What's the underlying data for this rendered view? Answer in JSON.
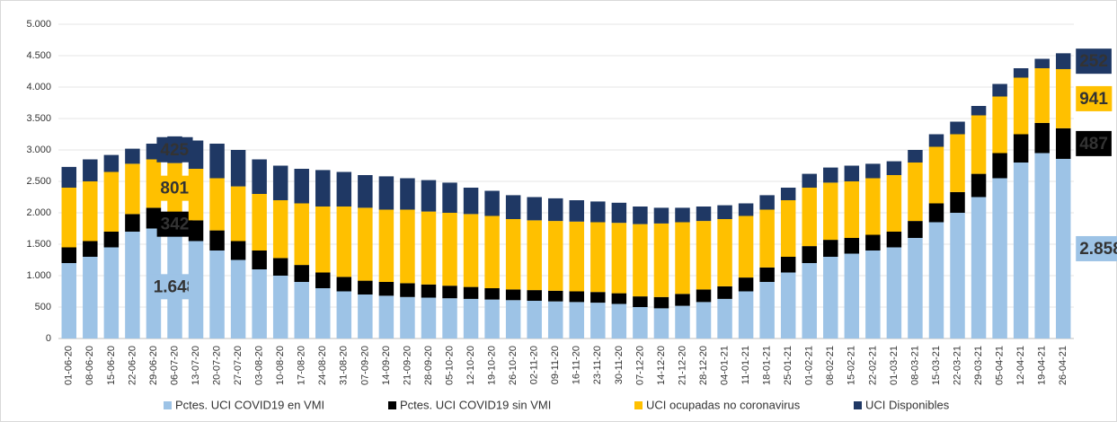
{
  "chart_data": {
    "type": "stacked_bar",
    "categories": [
      "01-06-20",
      "08-06-20",
      "15-06-20",
      "22-06-20",
      "29-06-20",
      "06-07-20",
      "13-07-20",
      "20-07-20",
      "27-07-20",
      "03-08-20",
      "10-08-20",
      "17-08-20",
      "24-08-20",
      "31-08-20",
      "07-09-20",
      "14-09-20",
      "21-09-20",
      "28-09-20",
      "05-10-20",
      "12-10-20",
      "19-10-20",
      "26-10-20",
      "02-11-20",
      "09-11-20",
      "16-11-20",
      "23-11-20",
      "30-11-20",
      "07-12-20",
      "14-12-20",
      "21-12-20",
      "28-12-20",
      "04-01-21",
      "11-01-21",
      "18-01-21",
      "25-01-21",
      "01-02-21",
      "08-02-21",
      "15-02-21",
      "22-02-21",
      "01-03-21",
      "08-03-21",
      "15-03-21",
      "22-03-21",
      "29-03-21",
      "05-04-21",
      "12-04-21",
      "19-04-21",
      "26-04-21"
    ],
    "series": [
      {
        "name": "Pctes. UCI COVID19 en VMI",
        "color": "#9dc3e6",
        "values": [
          1200,
          1300,
          1450,
          1700,
          1750,
          1648,
          1550,
          1400,
          1250,
          1100,
          1000,
          900,
          800,
          750,
          700,
          680,
          660,
          650,
          640,
          630,
          620,
          610,
          600,
          590,
          580,
          570,
          550,
          500,
          480,
          520,
          580,
          630,
          750,
          900,
          1050,
          1200,
          1300,
          1350,
          1400,
          1450,
          1600,
          1850,
          2000,
          2250,
          2550,
          2800,
          2950,
          2858
        ],
        "value_labels": [
          null,
          null,
          null,
          null,
          null,
          "1.648",
          null,
          null,
          null,
          null,
          null,
          null,
          null,
          null,
          null,
          null,
          null,
          null,
          null,
          null,
          null,
          null,
          null,
          null,
          null,
          null,
          null,
          null,
          null,
          null,
          null,
          null,
          null,
          null,
          null,
          null,
          null,
          null,
          null,
          null,
          null,
          null,
          null,
          null,
          null,
          null,
          null,
          "2.858"
        ]
      },
      {
        "name": "Pctes. UCI COVID19 sin VMI",
        "color": "#000000",
        "values": [
          250,
          250,
          250,
          280,
          330,
          342,
          330,
          320,
          300,
          300,
          280,
          270,
          250,
          230,
          220,
          220,
          220,
          210,
          200,
          190,
          180,
          170,
          170,
          170,
          170,
          170,
          170,
          170,
          180,
          190,
          200,
          200,
          220,
          230,
          250,
          270,
          270,
          250,
          250,
          250,
          270,
          300,
          330,
          370,
          400,
          450,
          480,
          487
        ]
      },
      {
        "name": "UCI ocupadas no coronavirus",
        "color": "#ffc000",
        "values": [
          950,
          950,
          950,
          800,
          770,
          801,
          820,
          830,
          870,
          900,
          920,
          980,
          1050,
          1120,
          1160,
          1150,
          1170,
          1160,
          1160,
          1160,
          1150,
          1120,
          1110,
          1110,
          1110,
          1110,
          1120,
          1150,
          1170,
          1140,
          1090,
          1070,
          980,
          920,
          900,
          930,
          910,
          900,
          900,
          900,
          930,
          900,
          920,
          930,
          900,
          900,
          870,
          941
        ]
      },
      {
        "name": "UCI Disponibles",
        "color": "#1f3864",
        "values": [
          330,
          350,
          270,
          240,
          250,
          425,
          450,
          550,
          580,
          550,
          550,
          550,
          580,
          550,
          520,
          530,
          500,
          500,
          480,
          420,
          400,
          380,
          370,
          360,
          340,
          330,
          320,
          280,
          250,
          230,
          230,
          220,
          200,
          230,
          200,
          220,
          240,
          250,
          230,
          220,
          200,
          200,
          200,
          150,
          200,
          150,
          150,
          252
        ]
      }
    ],
    "ylim": [
      0,
      5000
    ],
    "yticks": [
      0,
      500,
      {
        "value": 1000,
        "label": "1.000"
      },
      {
        "value": 1500,
        "label": "1.500"
      },
      {
        "value": 2000,
        "label": "2.000"
      },
      {
        "value": 2500,
        "label": "2.500"
      },
      {
        "value": 3000,
        "label": "3.000"
      },
      {
        "value": 3500,
        "label": "3.500"
      },
      {
        "value": 4000,
        "label": "4.000"
      },
      {
        "value": 4500,
        "label": "4.500"
      },
      {
        "value": 5000,
        "label": "5.000"
      }
    ],
    "grid": true,
    "legend": "bottom"
  }
}
